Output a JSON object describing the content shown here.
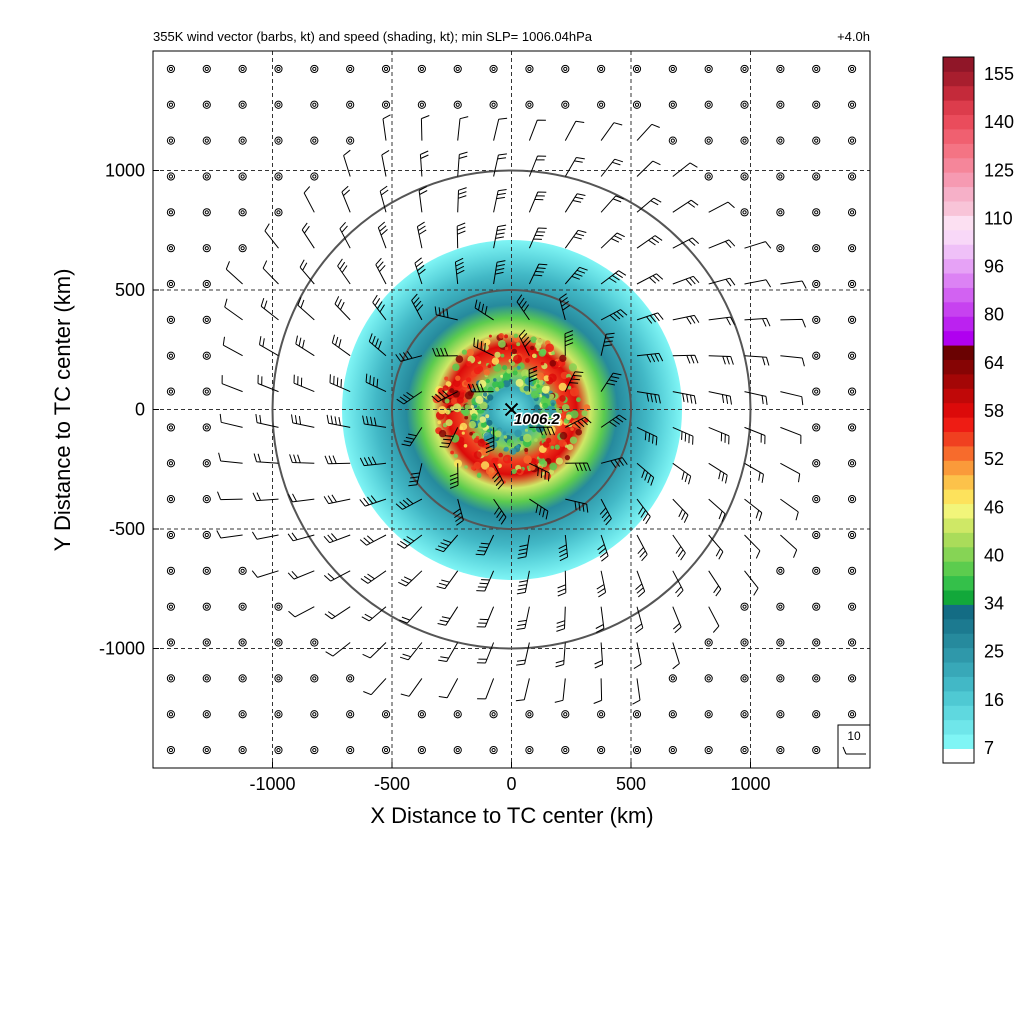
{
  "chart_data": {
    "type": "heatmap",
    "title_left": "355K wind vector (barbs, kt) and speed (shading, kt); min SLP= 1006.04hPa",
    "title_right": "+4.0h",
    "xlabel": "X Distance to TC center (km)",
    "ylabel": "Y Distance to TC center (km)",
    "xlim": [
      -1500,
      1500
    ],
    "ylim": [
      -1500,
      1500
    ],
    "x_ticks": [
      -1000,
      -500,
      0,
      500,
      1000
    ],
    "y_ticks": [
      -1000,
      -500,
      0,
      500,
      1000
    ],
    "x_tick_labels": [
      "-1000",
      "-500",
      "0",
      "500",
      "1000"
    ],
    "y_tick_labels": [
      "-1000",
      "-500",
      "0",
      "500",
      "1000"
    ],
    "grid": "dashed",
    "range_rings_km": [
      500,
      1000
    ],
    "center": {
      "marker": "x",
      "label": "1006.2"
    },
    "reference_barb": {
      "label": "10"
    },
    "colorbar": {
      "labels": [
        "155",
        "140",
        "125",
        "110",
        "96",
        "80",
        "64",
        "58",
        "52",
        "46",
        "40",
        "34",
        "25",
        "16",
        "7"
      ],
      "colors": [
        "#ffffff",
        "#7ff5f5",
        "#6fe6ea",
        "#5fd8df",
        "#4fc9d3",
        "#42b8c6",
        "#38a8b8",
        "#2f98aa",
        "#268a9d",
        "#1c7a90",
        "#136c84",
        "#12a83a",
        "#34c04a",
        "#5ccc4e",
        "#86d455",
        "#aadc5a",
        "#cfe866",
        "#f2f57a",
        "#fde25c",
        "#fcc24a",
        "#fa9a3a",
        "#f76b2c",
        "#f04020",
        "#ee1c14",
        "#dc0a0a",
        "#c00808",
        "#a40606",
        "#860404",
        "#6a0202",
        "#b000f0",
        "#bb22f0",
        "#c742f0",
        "#d262f2",
        "#dc82f4",
        "#e6a2f6",
        "#efc0f8",
        "#f8d8f8",
        "#fce0f2",
        "#f8c4d8",
        "#f6b0c8",
        "#f69ab2",
        "#f5869a",
        "#f47484",
        "#f06070",
        "#ea4c5c",
        "#dc3c4c",
        "#c42a3a",
        "#a81e2e",
        "#901628"
      ]
    },
    "wind_speed_field": {
      "units": "kt",
      "shading_outer_radius_km": 720,
      "eye_radius_km": 100,
      "max_wind_radius_km": 250,
      "approx_max_speed_kt": 60
    }
  }
}
